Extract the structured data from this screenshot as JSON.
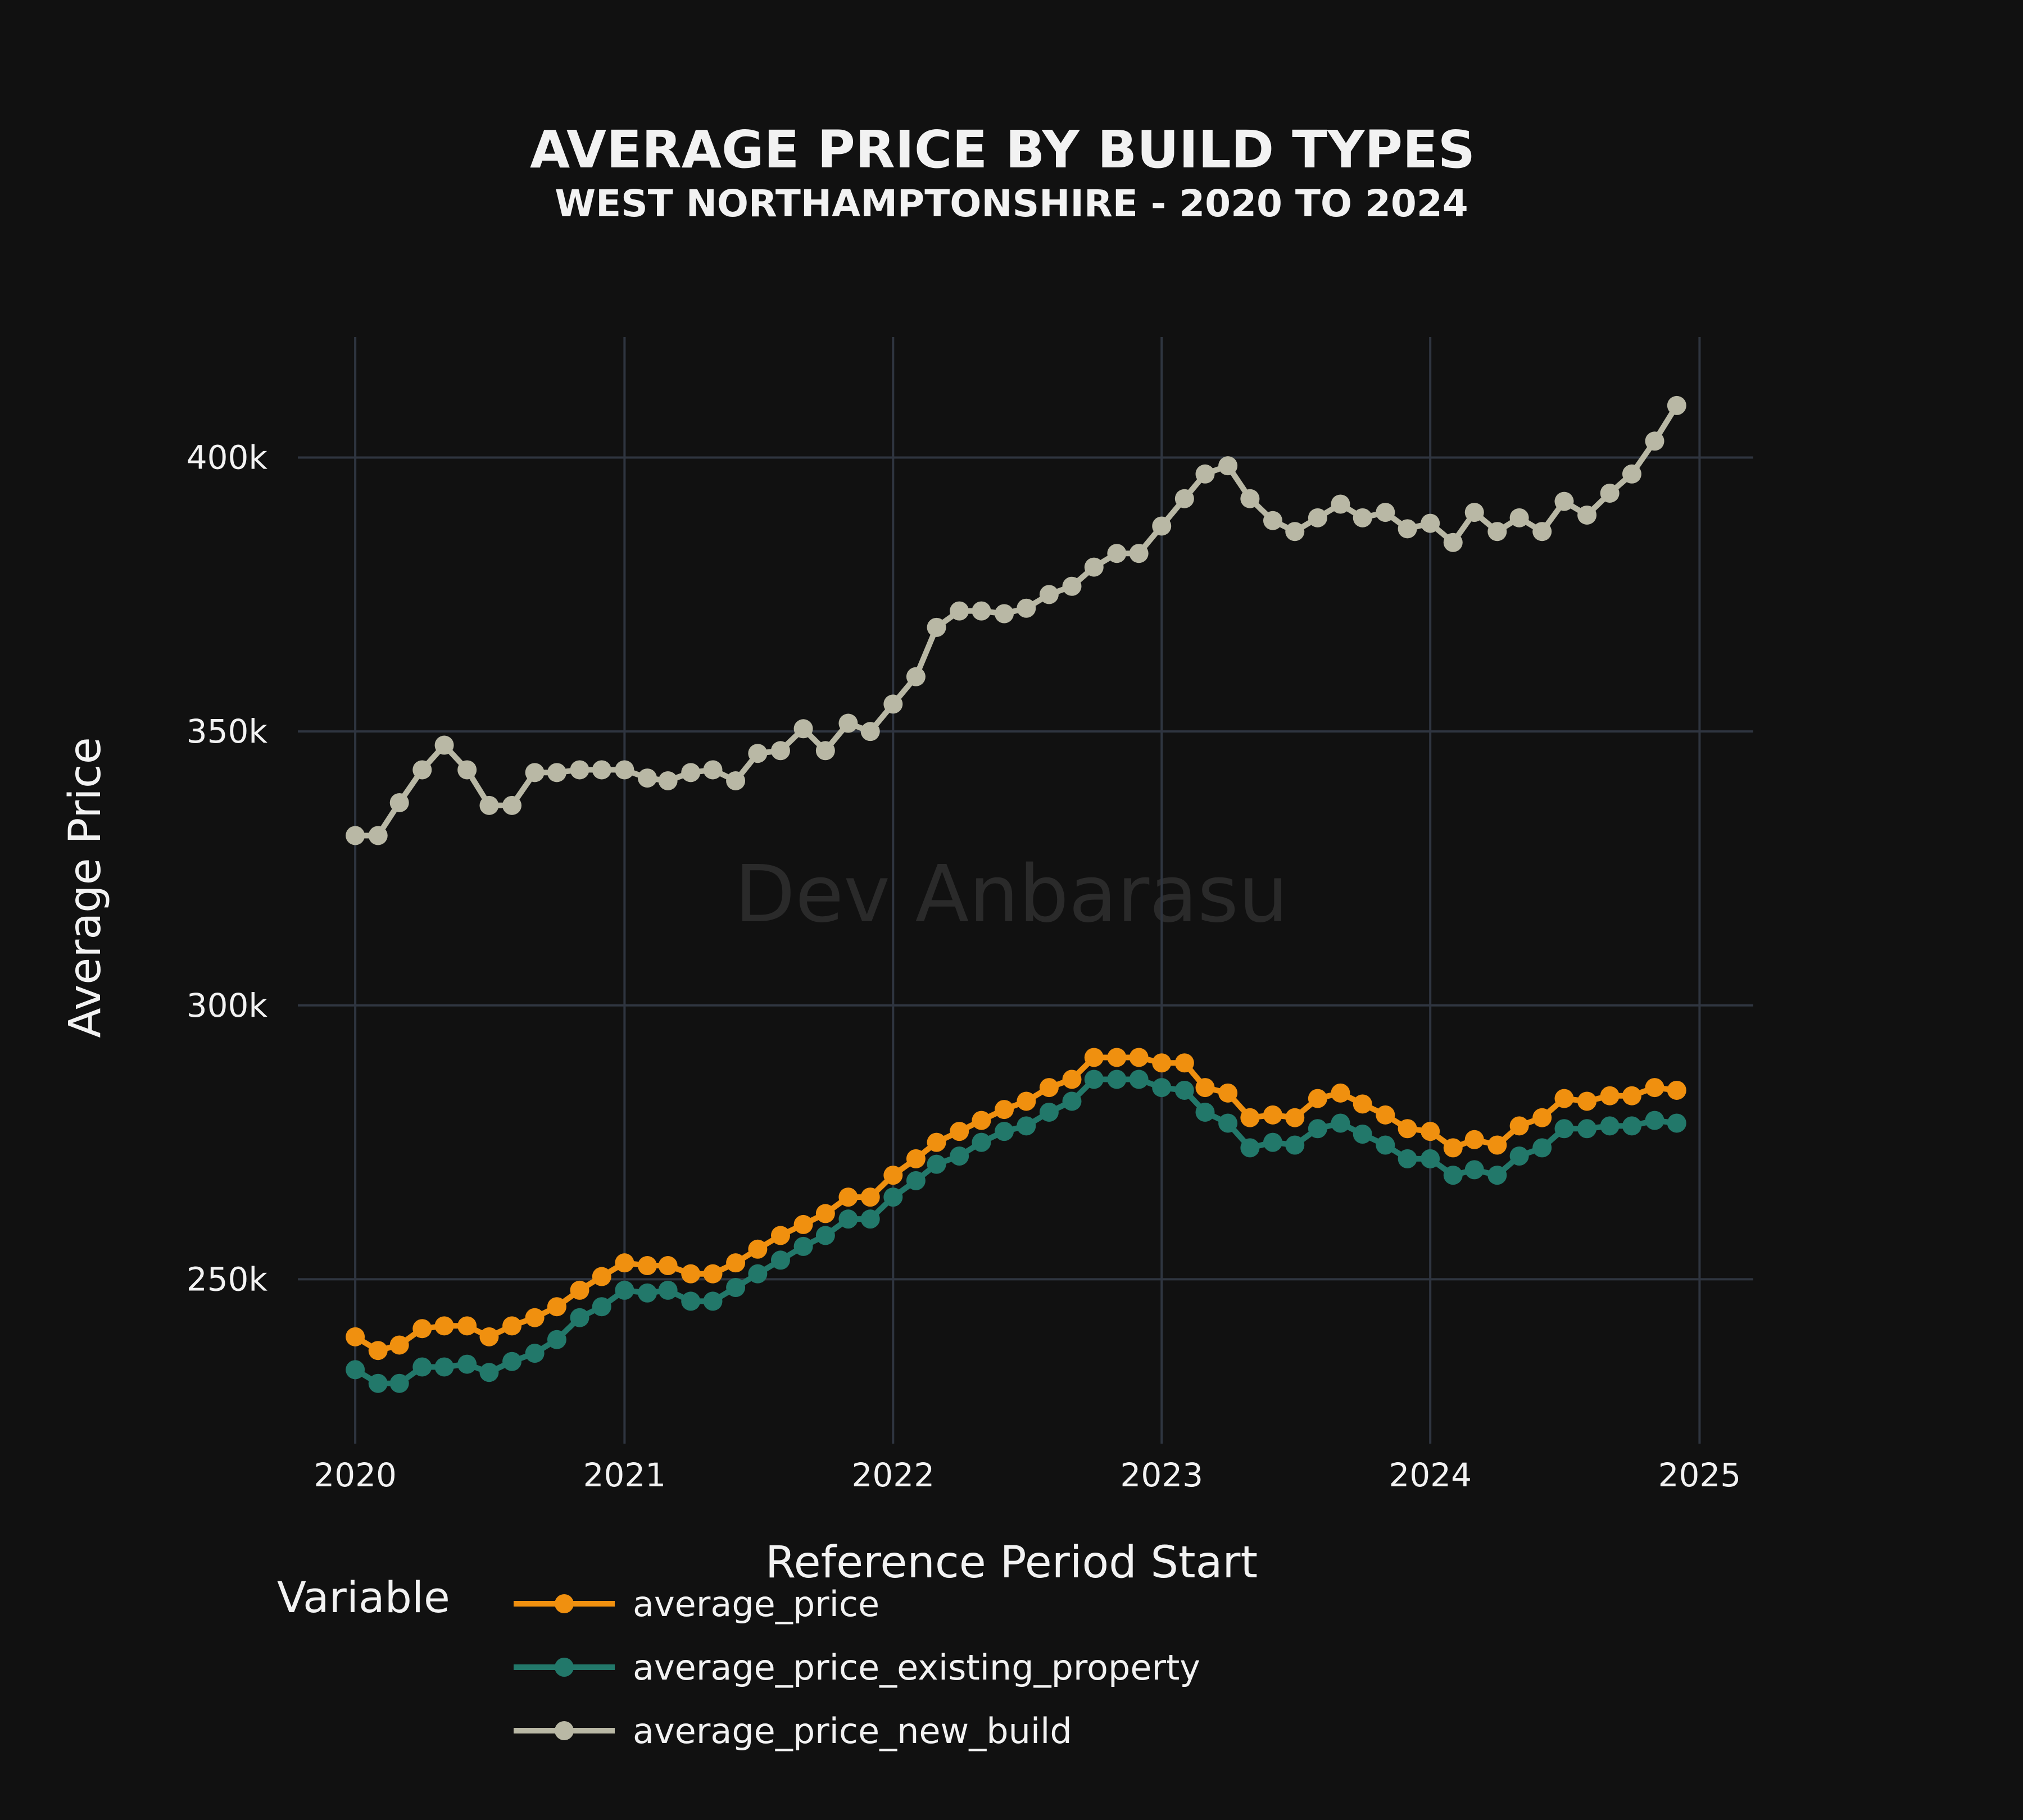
{
  "chart_data": {
    "type": "line",
    "title": "AVERAGE PRICE BY BUILD TYPES",
    "subtitle": "WEST NORTHAMPTONSHIRE - 2020 TO 2024",
    "xlabel": "Reference Period Start",
    "ylabel": "Average Price",
    "watermark": "Dev Anbarasu",
    "legend_title": "Variable",
    "legend_position": "bottom",
    "grid": true,
    "x_range": [
      "2019-10-15",
      "2025-03-15"
    ],
    "y_range": [
      220000,
      422000
    ],
    "x_ticks": [
      {
        "value": "2020-01-01",
        "label": "2020"
      },
      {
        "value": "2021-01-01",
        "label": "2021"
      },
      {
        "value": "2022-01-01",
        "label": "2022"
      },
      {
        "value": "2023-01-01",
        "label": "2023"
      },
      {
        "value": "2024-01-01",
        "label": "2024"
      },
      {
        "value": "2025-01-01",
        "label": "2025"
      }
    ],
    "y_ticks": [
      {
        "value": 250000,
        "label": "250k"
      },
      {
        "value": 300000,
        "label": "300k"
      },
      {
        "value": 350000,
        "label": "350k"
      },
      {
        "value": 400000,
        "label": "400k"
      }
    ],
    "x": [
      "2020-01-01",
      "2020-02-01",
      "2020-03-01",
      "2020-04-01",
      "2020-05-01",
      "2020-06-01",
      "2020-07-01",
      "2020-08-01",
      "2020-09-01",
      "2020-10-01",
      "2020-11-01",
      "2020-12-01",
      "2021-01-01",
      "2021-02-01",
      "2021-03-01",
      "2021-04-01",
      "2021-05-01",
      "2021-06-01",
      "2021-07-01",
      "2021-08-01",
      "2021-09-01",
      "2021-10-01",
      "2021-11-01",
      "2021-12-01",
      "2022-01-01",
      "2022-02-01",
      "2022-03-01",
      "2022-04-01",
      "2022-05-01",
      "2022-06-01",
      "2022-07-01",
      "2022-08-01",
      "2022-09-01",
      "2022-10-01",
      "2022-11-01",
      "2022-12-01",
      "2023-01-01",
      "2023-02-01",
      "2023-03-01",
      "2023-04-01",
      "2023-05-01",
      "2023-06-01",
      "2023-07-01",
      "2023-08-01",
      "2023-09-01",
      "2023-10-01",
      "2023-11-01",
      "2023-12-01",
      "2024-01-01",
      "2024-02-01",
      "2024-03-01",
      "2024-04-01",
      "2024-05-01",
      "2024-06-01",
      "2024-07-01",
      "2024-08-01",
      "2024-09-01",
      "2024-10-01",
      "2024-11-01",
      "2024-12-01"
    ],
    "series": [
      {
        "name": "average_price",
        "color": "#f0900f",
        "values": [
          239500,
          237000,
          238000,
          241000,
          241500,
          241500,
          239500,
          241500,
          243000,
          245000,
          248000,
          250500,
          253000,
          252500,
          252500,
          251000,
          251000,
          253000,
          255500,
          258000,
          260000,
          262000,
          265000,
          265000,
          269000,
          272000,
          275000,
          277000,
          279000,
          281000,
          282500,
          285000,
          286500,
          290500,
          290500,
          290500,
          289500,
          289500,
          285000,
          284000,
          279500,
          280000,
          279500,
          283000,
          284000,
          282000,
          280000,
          277500,
          277000,
          274000,
          275500,
          274500,
          278000,
          279500,
          283000,
          282500,
          283500,
          283500,
          285000,
          284500
        ]
      },
      {
        "name": "average_price_existing_property",
        "color": "#22786a",
        "values": [
          233500,
          231000,
          231000,
          234000,
          234000,
          234500,
          233000,
          235000,
          236500,
          239000,
          243000,
          245000,
          248000,
          247500,
          248000,
          246000,
          246000,
          248500,
          251000,
          253500,
          256000,
          258000,
          261000,
          261000,
          265000,
          268000,
          271000,
          272500,
          275000,
          277000,
          278000,
          280500,
          282500,
          286500,
          286500,
          286500,
          285000,
          284500,
          280500,
          278500,
          274000,
          275000,
          274500,
          277500,
          278500,
          276500,
          274500,
          272000,
          272000,
          269000,
          270000,
          269000,
          272500,
          274000,
          277500,
          277500,
          278000,
          278000,
          279000,
          278500
        ]
      },
      {
        "name": "average_price_new_build",
        "color": "#b9b8a5",
        "values": [
          331000,
          331000,
          337000,
          343000,
          347500,
          343000,
          336500,
          336500,
          342500,
          342500,
          343000,
          343000,
          343000,
          341500,
          341000,
          342500,
          343000,
          341000,
          346000,
          346500,
          350500,
          346500,
          351500,
          350000,
          355000,
          360000,
          369000,
          372000,
          372000,
          371500,
          372500,
          375000,
          376500,
          380000,
          382500,
          382500,
          387500,
          392500,
          397000,
          398500,
          392500,
          388500,
          386500,
          389000,
          391500,
          389000,
          390000,
          387000,
          388000,
          384500,
          390000,
          386500,
          389000,
          386500,
          392000,
          389500,
          393500,
          397000,
          403000,
          409500
        ]
      }
    ]
  }
}
